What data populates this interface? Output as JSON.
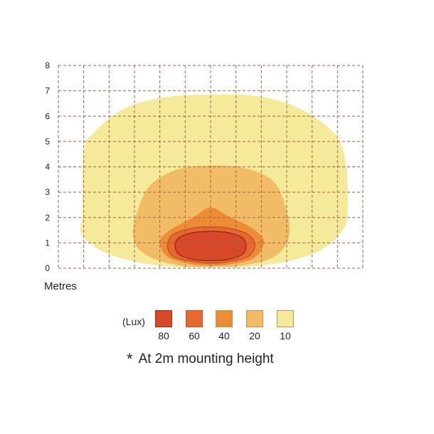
{
  "chart_data": {
    "type": "heatmap",
    "title": "",
    "xlabel": "",
    "ylabel": "Metres",
    "ylim": [
      0,
      8
    ],
    "xlim": [
      -6,
      6
    ],
    "yticks": [
      0,
      1,
      2,
      3,
      4,
      5,
      6,
      7,
      8
    ],
    "grid": true,
    "legend_title": "(Lux)",
    "legend_placement": "bottom",
    "levels": [
      {
        "lux": "80",
        "color": "#d8492a",
        "border": "#9e2a18",
        "outline": [
          [
            -1.4,
            0.9
          ],
          [
            -1.25,
            1.2
          ],
          [
            -0.7,
            1.4
          ],
          [
            0,
            1.45
          ],
          [
            0.7,
            1.4
          ],
          [
            1.25,
            1.2
          ],
          [
            1.4,
            0.9
          ],
          [
            1.25,
            0.55
          ],
          [
            0.7,
            0.35
          ],
          [
            0,
            0.3
          ],
          [
            -0.7,
            0.35
          ],
          [
            -1.25,
            0.55
          ]
        ]
      },
      {
        "lux": "60",
        "color": "#e46a30",
        "border": "#c8512a",
        "outline": [
          [
            -1.7,
            0.9
          ],
          [
            -1.45,
            1.35
          ],
          [
            -0.6,
            1.6
          ],
          [
            0,
            1.62
          ],
          [
            0.6,
            1.6
          ],
          [
            1.45,
            1.35
          ],
          [
            1.75,
            0.9
          ],
          [
            1.45,
            0.45
          ],
          [
            0.6,
            0.25
          ],
          [
            0,
            0.2
          ],
          [
            -0.6,
            0.25
          ],
          [
            -1.45,
            0.45
          ]
        ]
      },
      {
        "lux": "40",
        "color": "#ec8c34",
        "border": "",
        "outline": [
          [
            -2,
            1.05
          ],
          [
            -1.6,
            1.5
          ],
          [
            -0.7,
            2
          ],
          [
            0,
            2.4
          ],
          [
            0.7,
            2.05
          ],
          [
            1.6,
            1.6
          ],
          [
            2.1,
            1.05
          ],
          [
            1.7,
            0.4
          ],
          [
            0.7,
            0.15
          ],
          [
            0,
            0.1
          ],
          [
            -0.7,
            0.15
          ],
          [
            -1.7,
            0.45
          ]
        ]
      },
      {
        "lux": "20",
        "color": "#f2bc66",
        "border": "",
        "outline": [
          [
            -3.05,
            1.2
          ],
          [
            -2.85,
            2.35
          ],
          [
            -2.35,
            3.3
          ],
          [
            -1.3,
            3.9
          ],
          [
            0,
            4.05
          ],
          [
            1.3,
            3.95
          ],
          [
            2.4,
            3.5
          ],
          [
            2.9,
            2.6
          ],
          [
            3.1,
            1.3
          ],
          [
            2.5,
            0.45
          ],
          [
            1.2,
            0.1
          ],
          [
            0,
            0.05
          ],
          [
            -1.2,
            0.1
          ],
          [
            -2.5,
            0.5
          ]
        ]
      },
      {
        "lux": "10",
        "color": "#f5e99a",
        "border": "",
        "outline": [
          [
            -5.05,
            2.2
          ],
          [
            -5,
            4.6
          ],
          [
            -4.6,
            5.35
          ],
          [
            -3.4,
            6.3
          ],
          [
            -1.8,
            6.75
          ],
          [
            0,
            6.85
          ],
          [
            1.8,
            6.8
          ],
          [
            3.4,
            6.35
          ],
          [
            4.8,
            5.4
          ],
          [
            5.3,
            4.3
          ],
          [
            5.4,
            2.2
          ],
          [
            5.05,
            1.3
          ],
          [
            4,
            0.55
          ],
          [
            2,
            0.1
          ],
          [
            0,
            0.05
          ],
          [
            -2,
            0.1
          ],
          [
            -4,
            0.55
          ],
          [
            -5.05,
            1.3
          ]
        ]
      }
    ]
  },
  "footnote": {
    "star": "*",
    "text": "At 2m mounting height"
  }
}
